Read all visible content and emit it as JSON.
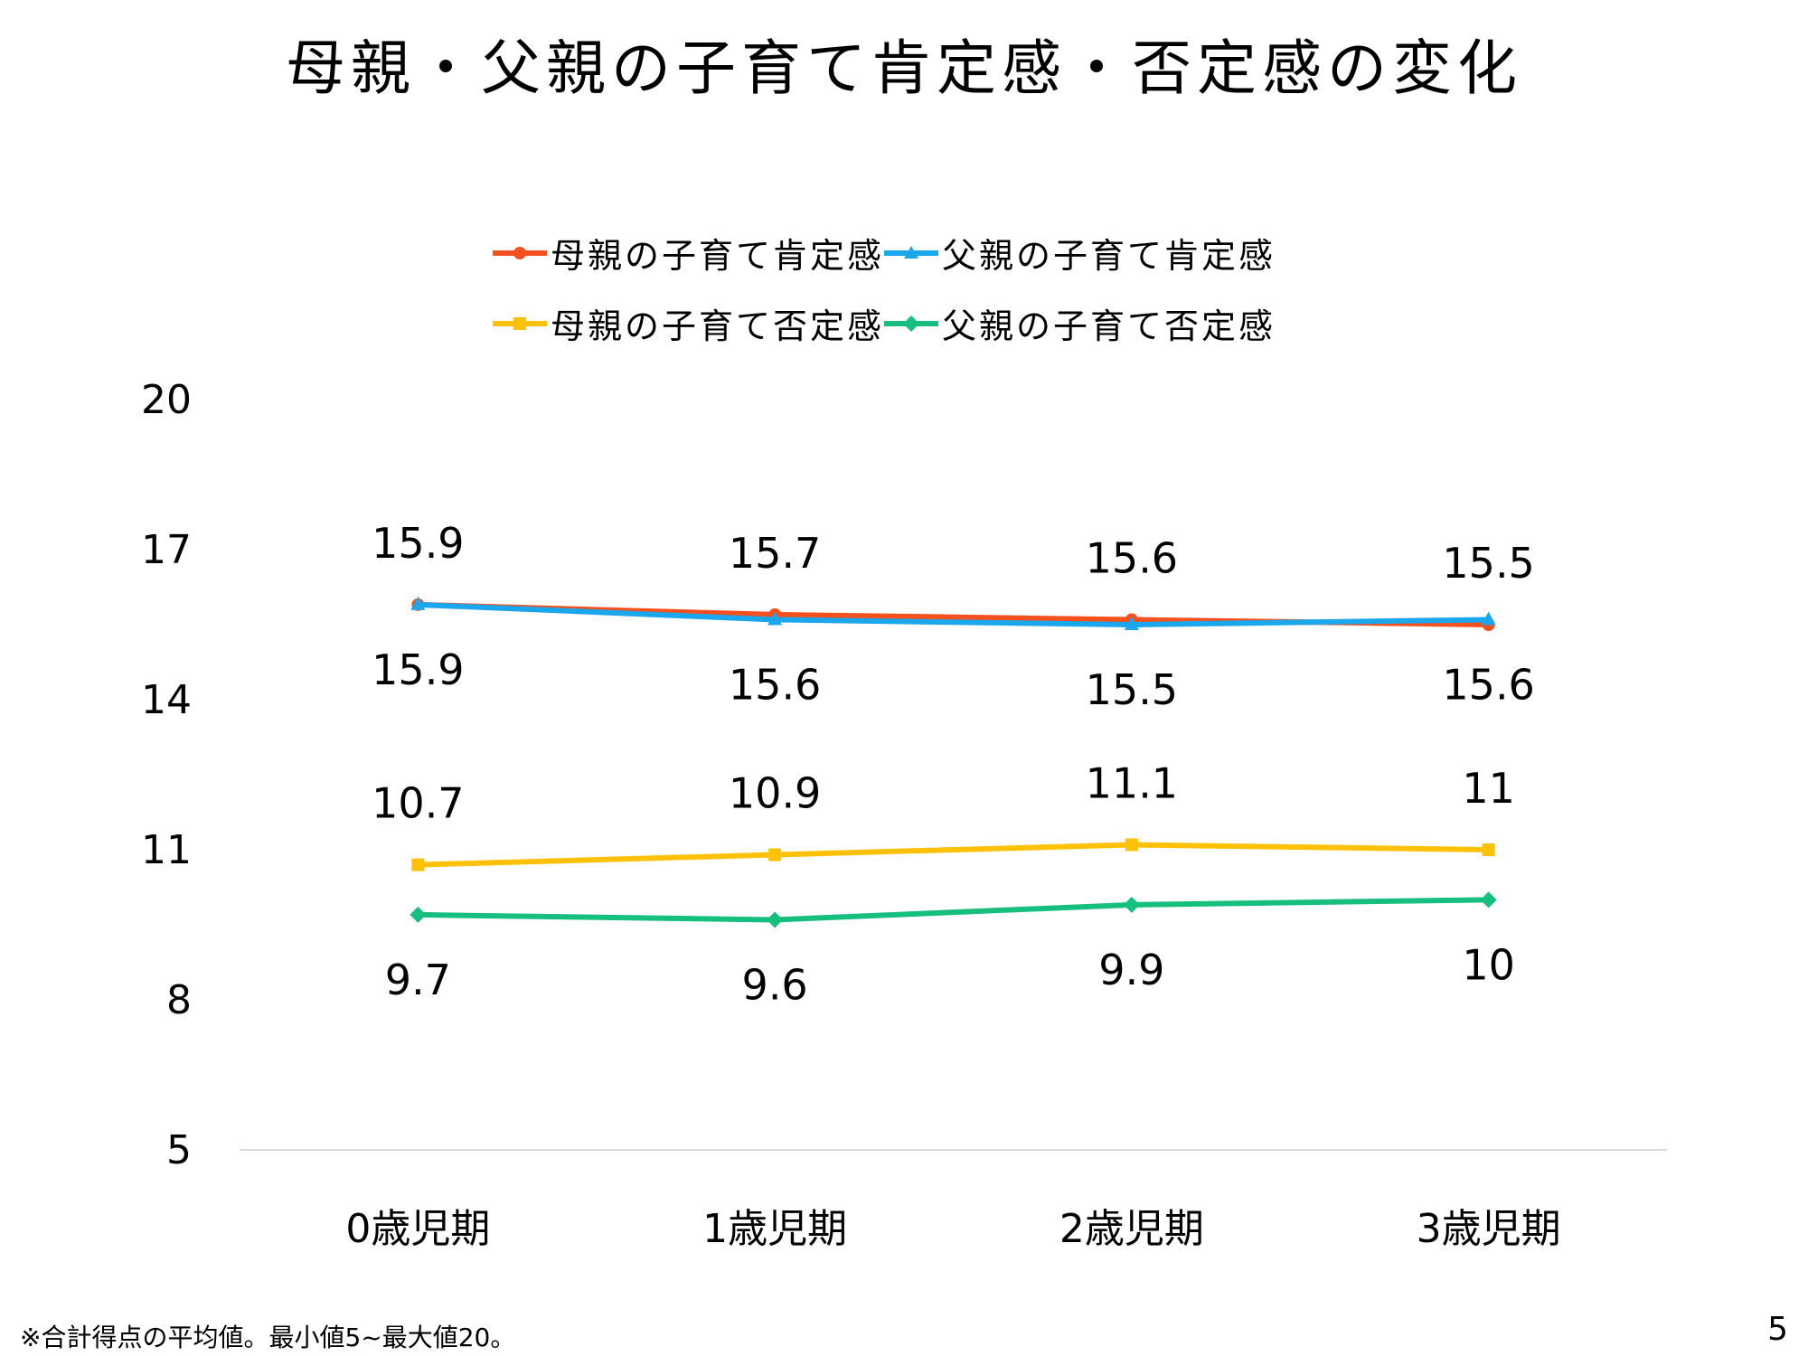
{
  "title": "母親・父親の子育て肯定感・否定感の変化",
  "footnote": "※合計得点の平均値。最小値5~最大値20。",
  "page_number": "5",
  "chart_data": {
    "type": "line",
    "title": "母親・父親の子育て肯定感・否定感の変化",
    "categories": [
      "0歳児期",
      "1歳児期",
      "2歳児期",
      "3歳児期"
    ],
    "ylim": [
      5,
      20
    ],
    "yticks": [
      "5",
      "8",
      "11",
      "14",
      "17",
      "20"
    ],
    "grid": false,
    "legend_position": "top",
    "series": [
      {
        "name": "母親の子育て肯定感",
        "color": "#F4511E",
        "marker": "circle",
        "values": [
          15.9,
          15.7,
          15.6,
          15.5
        ],
        "labels": [
          "15.9",
          "15.7",
          "15.6",
          "15.5"
        ],
        "label_pos": "above"
      },
      {
        "name": "父親の子育て肯定感",
        "color": "#1AA7EC",
        "marker": "triangle",
        "values": [
          15.9,
          15.6,
          15.5,
          15.6
        ],
        "labels": [
          "15.9",
          "15.6",
          "15.5",
          "15.6"
        ],
        "label_pos": "below"
      },
      {
        "name": "母親の子育て否定感",
        "color": "#FFC107",
        "marker": "square",
        "values": [
          10.7,
          10.9,
          11.1,
          11
        ],
        "labels": [
          "10.7",
          "10.9",
          "11.1",
          "11"
        ],
        "label_pos": "above"
      },
      {
        "name": "父親の子育て否定感",
        "color": "#17BF7F",
        "marker": "diamond",
        "values": [
          9.7,
          9.6,
          9.9,
          10
        ],
        "labels": [
          "9.7",
          "9.6",
          "9.9",
          "10"
        ],
        "label_pos": "below"
      }
    ]
  }
}
